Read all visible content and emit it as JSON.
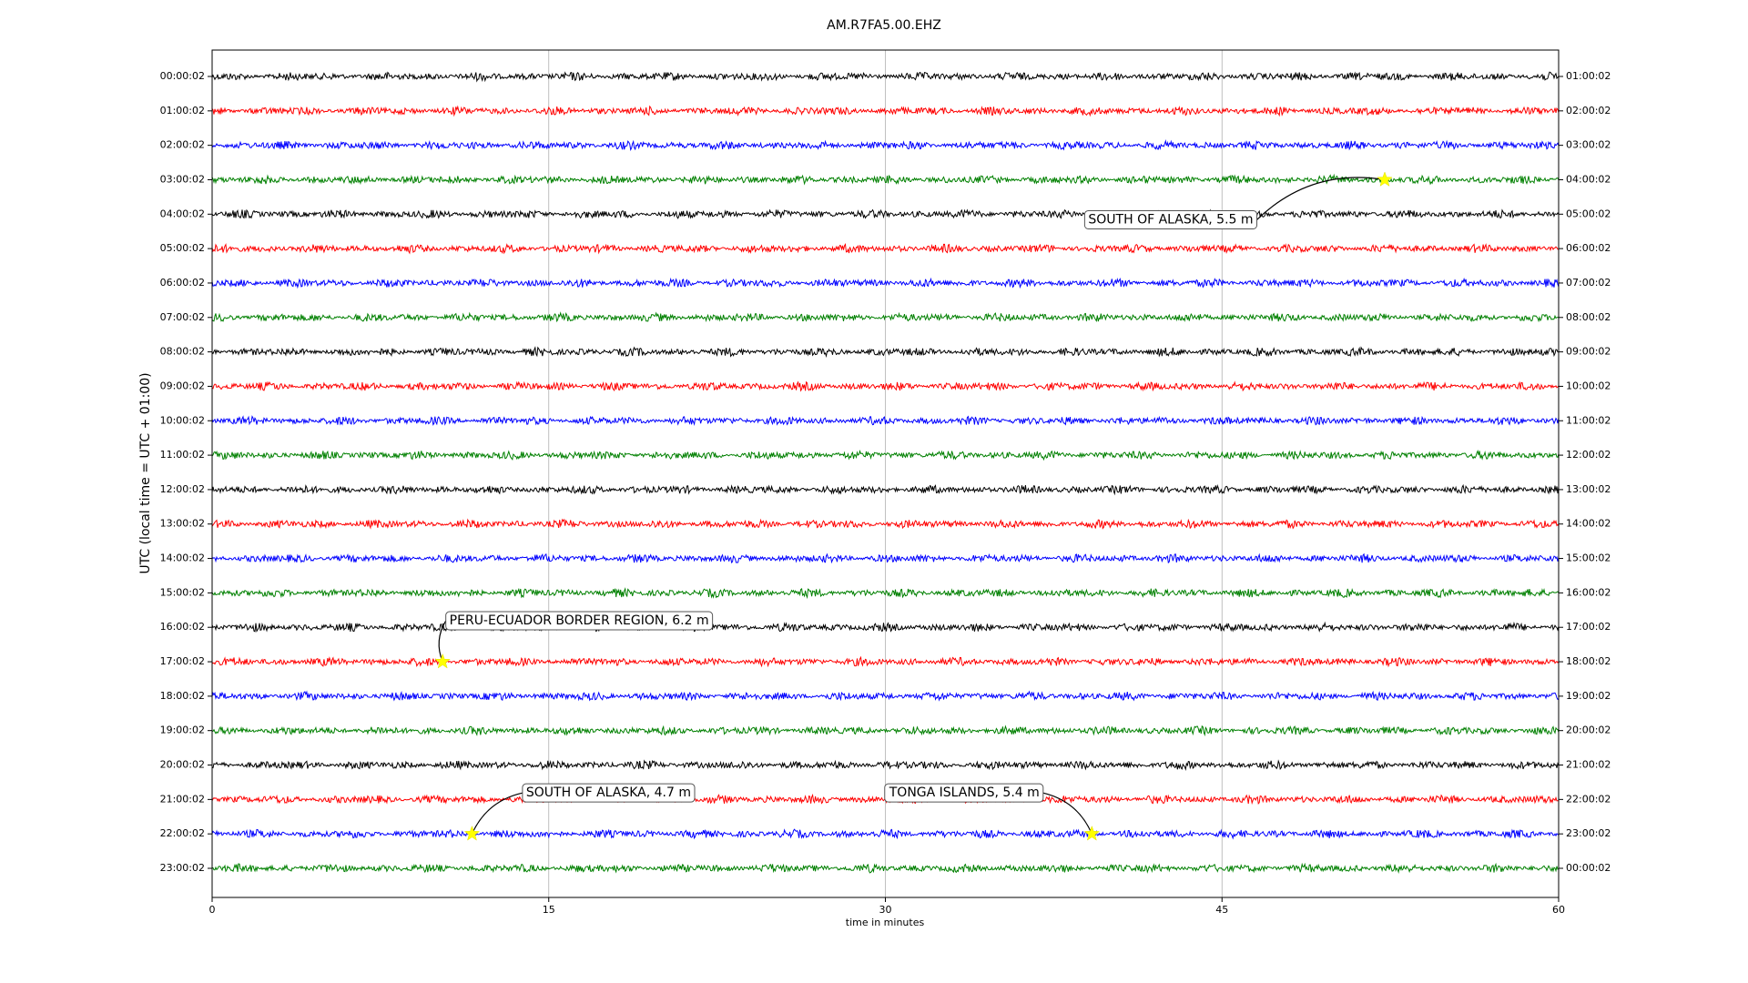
{
  "chart_data": {
    "type": "dayplot",
    "title": "AM.R7FA5.00.EHZ",
    "xlabel": "time in minutes",
    "ylabel": "UTC (local time = UTC + 01:00)",
    "xlim": [
      0,
      60
    ],
    "xticks": [
      0,
      15,
      30,
      45,
      60
    ],
    "grid": true,
    "colors": [
      "#000000",
      "#ff0000",
      "#0000ff",
      "#008000"
    ],
    "rows": [
      "00:00:02",
      "01:00:02",
      "02:00:02",
      "03:00:02",
      "04:00:02",
      "05:00:02",
      "06:00:02",
      "07:00:02",
      "08:00:02",
      "09:00:02",
      "10:00:02",
      "11:00:02",
      "12:00:02",
      "13:00:02",
      "14:00:02",
      "15:00:02",
      "16:00:02",
      "17:00:02",
      "18:00:02",
      "19:00:02",
      "20:00:02",
      "21:00:02",
      "22:00:02",
      "23:00:02"
    ],
    "rows_right": [
      "01:00:02",
      "02:00:02",
      "03:00:02",
      "04:00:02",
      "05:00:02",
      "06:00:02",
      "07:00:02",
      "08:00:02",
      "09:00:02",
      "10:00:02",
      "11:00:02",
      "12:00:02",
      "13:00:02",
      "14:00:02",
      "15:00:02",
      "16:00:02",
      "17:00:02",
      "18:00:02",
      "19:00:02",
      "20:00:02",
      "21:00:02",
      "22:00:02",
      "23:00:02",
      "00:00:02"
    ],
    "events": [
      {
        "label": "SOUTH OF ALASKA, 5.5 m",
        "row": 3,
        "minute": 52.25
      },
      {
        "label": "PERU-ECUADOR BORDER REGION, 6.2 m",
        "row": 17,
        "minute": 10.27
      },
      {
        "label": "SOUTH OF ALASKA, 4.7 m",
        "row": 22,
        "minute": 11.58
      },
      {
        "label": "TONGA ISLANDS, 5.4 m",
        "row": 22,
        "minute": 39.2
      }
    ]
  }
}
